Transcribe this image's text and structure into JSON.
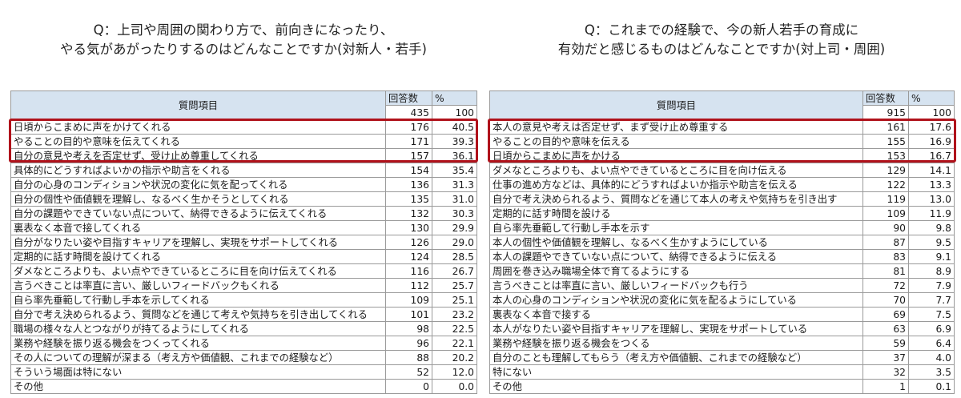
{
  "left": {
    "title_lines": [
      "Q：上司や周囲の関わり方で、前向きになったり、",
      "やる気があがったりするのはどんなことですか(対新人・若手)"
    ],
    "header": {
      "item": "質問項目",
      "count": "回答数",
      "percent": "%"
    },
    "n": {
      "count": "435",
      "percent": "100"
    },
    "rows": [
      {
        "item": "日頃からこまめに声をかけてくれる",
        "count": "176",
        "percent": "40.5"
      },
      {
        "item": "やることの目的や意味を伝えてくれる",
        "count": "171",
        "percent": "39.3"
      },
      {
        "item": "自分の意見や考えを否定せず、受け止め尊重してくれる",
        "count": "157",
        "percent": "36.1"
      },
      {
        "item": "具体的にどうすればよいかの指示や助言をくれる",
        "count": "154",
        "percent": "35.4"
      },
      {
        "item": "自分の心身のコンディションや状況の変化に気を配ってくれる",
        "count": "136",
        "percent": "31.3"
      },
      {
        "item": "自分の個性や価値観を理解し、なるべく生かそうとしてくれる",
        "count": "135",
        "percent": "31.0"
      },
      {
        "item": "自分の課題やできていない点について、納得できるように伝えてくれる",
        "count": "132",
        "percent": "30.3"
      },
      {
        "item": "裏表なく本音で接してくれる",
        "count": "130",
        "percent": "29.9"
      },
      {
        "item": "自分がなりたい姿や目指すキャリアを理解し、実現をサポートしてくれる",
        "count": "126",
        "percent": "29.0"
      },
      {
        "item": "定期的に話す時間を設けてくれる",
        "count": "124",
        "percent": "28.5"
      },
      {
        "item": "ダメなところよりも、よい点やできているところに目を向け伝えてくれる",
        "count": "116",
        "percent": "26.7"
      },
      {
        "item": "言うべきことは率直に言い、厳しいフィードバックもくれる",
        "count": "112",
        "percent": "25.7"
      },
      {
        "item": "自ら率先垂範して行動し手本を示してくれる",
        "count": "109",
        "percent": "25.1"
      },
      {
        "item": "自分で考え決められるよう、質問などを通じて考えや気持ちを引き出してくれる",
        "count": "101",
        "percent": "23.2"
      },
      {
        "item": "職場の様々な人とつながりが持てるようにしてくれる",
        "count": "98",
        "percent": "22.5"
      },
      {
        "item": "業務や経験を振り返る機会をつくってくれる",
        "count": "96",
        "percent": "22.1"
      },
      {
        "item": "その人についての理解が深まる（考え方や価値観、これまでの経験など）",
        "count": "88",
        "percent": "20.2"
      },
      {
        "item": "そういう場面は特にない",
        "count": "52",
        "percent": "12.0"
      },
      {
        "item": "その他",
        "count": "0",
        "percent": "0.0"
      }
    ],
    "highlight_color": "#b0121b"
  },
  "right": {
    "title_lines": [
      "Q：これまでの経験で、今の新人若手の育成に",
      "有効だと感じるものはどんなことですか(対上司・周囲)"
    ],
    "header": {
      "item": "質問項目",
      "count": "回答数",
      "percent": "%"
    },
    "n": {
      "count": "915",
      "percent": "100"
    },
    "rows": [
      {
        "item": "本人の意見や考えは否定せず、まず受け止め尊重する",
        "count": "161",
        "percent": "17.6"
      },
      {
        "item": "やることの目的や意味を伝える",
        "count": "155",
        "percent": "16.9"
      },
      {
        "item": "日頃からこまめに声をかける",
        "count": "153",
        "percent": "16.7"
      },
      {
        "item": "ダメなところよりも、よい点やできているところに目を向け伝える",
        "count": "129",
        "percent": "14.1"
      },
      {
        "item": "仕事の進め方などは、具体的にどうすればよいか指示や助言を伝える",
        "count": "122",
        "percent": "13.3"
      },
      {
        "item": "自分で考え決められるよう、質問などを通じて本人の考えや気持ちを引き出す",
        "count": "119",
        "percent": "13.0"
      },
      {
        "item": "定期的に話す時間を設ける",
        "count": "109",
        "percent": "11.9"
      },
      {
        "item": "自ら率先垂範して行動し手本を示す",
        "count": "90",
        "percent": "9.8"
      },
      {
        "item": "本人の個性や価値観を理解し、なるべく生かすようにしている",
        "count": "87",
        "percent": "9.5"
      },
      {
        "item": "本人の課題やできていない点について、納得できるように伝える",
        "count": "83",
        "percent": "9.1"
      },
      {
        "item": "周囲を巻き込み職場全体で育てるようにする",
        "count": "81",
        "percent": "8.9"
      },
      {
        "item": "言うべきことは率直に言い、厳しいフィードバックも行う",
        "count": "72",
        "percent": "7.9"
      },
      {
        "item": "本人の心身のコンディションや状況の変化に気を配るようにしている",
        "count": "70",
        "percent": "7.7"
      },
      {
        "item": "裏表なく本音で接する",
        "count": "69",
        "percent": "7.5"
      },
      {
        "item": "本人がなりたい姿や目指すキャリアを理解し、実現をサポートしている",
        "count": "63",
        "percent": "6.9"
      },
      {
        "item": "業務や経験を振り返る機会をつくる",
        "count": "59",
        "percent": "6.4"
      },
      {
        "item": "自分のことも理解してもらう（考え方や価値観、これまでの経験など）",
        "count": "37",
        "percent": "4.0"
      },
      {
        "item": "特にない",
        "count": "32",
        "percent": "3.5"
      },
      {
        "item": "その他",
        "count": "1",
        "percent": "0.1"
      }
    ],
    "highlight_color": "#b0121b"
  },
  "colors": {
    "header_bg": "#d6e3f0",
    "grid": "#9a9a9a"
  }
}
